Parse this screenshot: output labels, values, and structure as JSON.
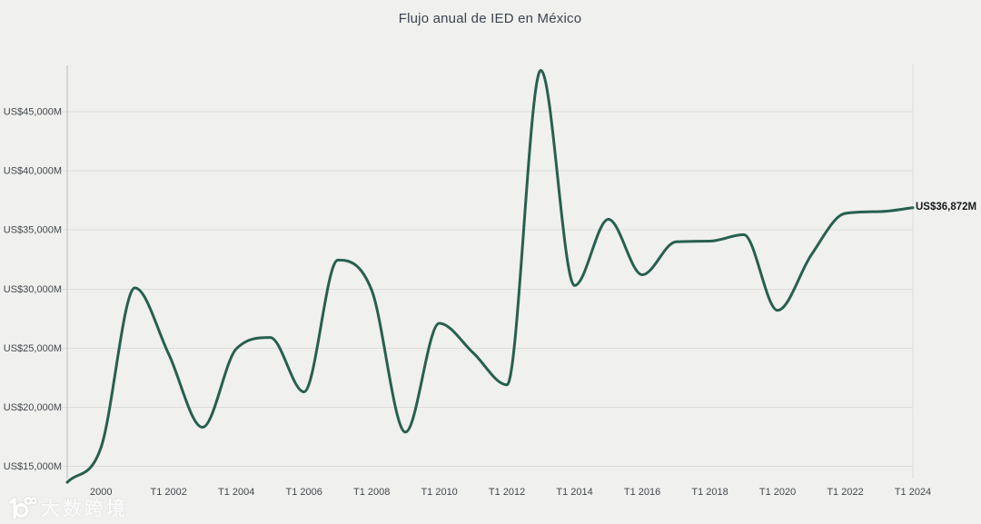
{
  "title": "Flujo anual de IED en México",
  "watermark": {
    "icon": "googol-10-100-logo",
    "text": "大数跨境"
  },
  "colors": {
    "background": "#f0f0ee",
    "line": "#275f50",
    "grid": "#dcdcdc",
    "axis": "#b9bcc0",
    "title_text": "#3b4350",
    "tick_text": "#43484e",
    "end_label_text": "#17191c",
    "watermark_text": "#ffffff"
  },
  "chart_data": {
    "type": "line",
    "title": "Flujo anual de IED en México",
    "unit": "US$ millones",
    "grid": "horizontal",
    "legend": "none",
    "xlim": [
      1999,
      2024
    ],
    "ylim": [
      13000,
      49200
    ],
    "x": [
      1999,
      2000,
      2001,
      2002,
      2003,
      2004,
      2005,
      2006,
      2007,
      2008,
      2009,
      2010,
      2011,
      2012,
      2013,
      2014,
      2015,
      2016,
      2017,
      2018,
      2019,
      2020,
      2021,
      2022,
      2023,
      2024
    ],
    "values": [
      13650,
      16600,
      30100,
      24500,
      18300,
      24950,
      25900,
      21300,
      32450,
      29900,
      17900,
      27100,
      24600,
      21900,
      48500,
      30300,
      35900,
      31200,
      34000,
      34050,
      34600,
      28200,
      32900,
      36400,
      36550,
      36872
    ],
    "series_name": "Flujo anual de IED",
    "line_color": "#275f50",
    "end_value": 36872,
    "end_label": "US$36,872M",
    "x_ticks": [
      {
        "year": 2000,
        "label": "2000"
      },
      {
        "year": 2002,
        "label": "T1 2002"
      },
      {
        "year": 2004,
        "label": "T1 2004"
      },
      {
        "year": 2006,
        "label": "T1 2006"
      },
      {
        "year": 2008,
        "label": "T1 2008"
      },
      {
        "year": 2010,
        "label": "T1 2010"
      },
      {
        "year": 2012,
        "label": "T1 2012"
      },
      {
        "year": 2014,
        "label": "T1 2014"
      },
      {
        "year": 2016,
        "label": "T1 2016"
      },
      {
        "year": 2018,
        "label": "T1 2018"
      },
      {
        "year": 2020,
        "label": "T1 2020"
      },
      {
        "year": 2022,
        "label": "T1 2022"
      },
      {
        "year": 2024,
        "label": "T1 2024"
      }
    ],
    "y_ticks": [
      {
        "value": 15000,
        "label": "US$15,000M"
      },
      {
        "value": 20000,
        "label": "US$20,000M"
      },
      {
        "value": 25000,
        "label": "US$25,000M"
      },
      {
        "value": 30000,
        "label": "US$30,000M"
      },
      {
        "value": 35000,
        "label": "US$35,000M"
      },
      {
        "value": 40000,
        "label": "US$40,000M"
      },
      {
        "value": 45000,
        "label": "US$45,000M"
      }
    ]
  }
}
